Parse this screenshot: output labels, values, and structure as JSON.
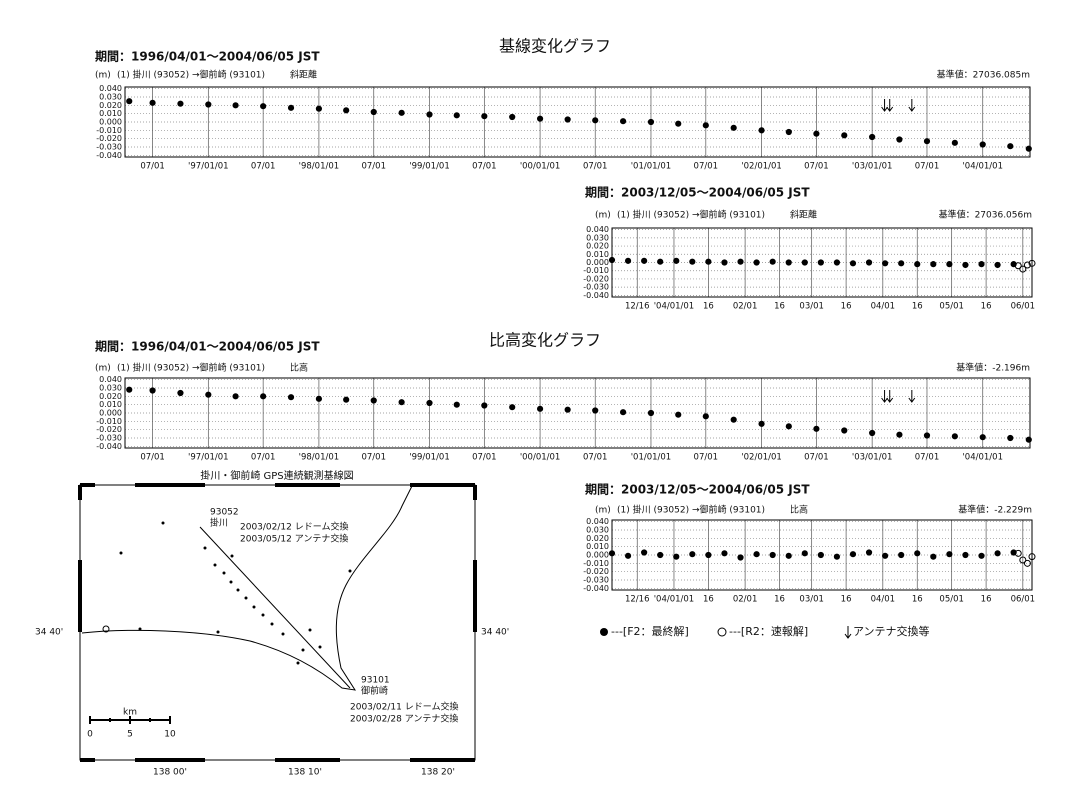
{
  "chart_data": [
    {
      "type": "scatter",
      "title": "基線変化グラフ",
      "subtitle": "期間：1996/04/01～2004/06/05 JST",
      "y_label": "(m)",
      "baseline": "(1) 掛川 (93052) →御前崎 (93101)",
      "component": "斜距離",
      "reference": "基準値：27036.085m",
      "xlim": [
        "1996-04-01",
        "2004-06-05"
      ],
      "ylim": [
        -0.042,
        0.042
      ],
      "xticks": [
        {
          "value": "1996-07-01",
          "label": "07/01"
        },
        {
          "value": "1997-01-01",
          "label": "'97/01/01"
        },
        {
          "value": "1997-07-01",
          "label": "07/01"
        },
        {
          "value": "1998-01-01",
          "label": "'98/01/01"
        },
        {
          "value": "1998-07-01",
          "label": "07/01"
        },
        {
          "value": "1999-01-01",
          "label": "'99/01/01"
        },
        {
          "value": "1999-07-01",
          "label": "07/01"
        },
        {
          "value": "2000-01-01",
          "label": "'00/01/01"
        },
        {
          "value": "2000-07-01",
          "label": "07/01"
        },
        {
          "value": "2001-01-01",
          "label": "'01/01/01"
        },
        {
          "value": "2001-07-01",
          "label": "07/01"
        },
        {
          "value": "2002-01-01",
          "label": "'02/01/01"
        },
        {
          "value": "2002-07-01",
          "label": "07/01"
        },
        {
          "value": "2003-01-01",
          "label": "'03/01/01"
        },
        {
          "value": "2003-07-01",
          "label": "07/01"
        },
        {
          "value": "2004-01-01",
          "label": "'04/01/01"
        }
      ],
      "yticks": [
        {
          "value": 0.04,
          "label": "0.040"
        },
        {
          "value": 0.03,
          "label": "0.030"
        },
        {
          "value": 0.02,
          "label": "0.020"
        },
        {
          "value": 0.01,
          "label": "0.010"
        },
        {
          "value": 0,
          "label": "0.000"
        },
        {
          "value": -0.01,
          "label": "-0.010"
        },
        {
          "value": -0.02,
          "label": "-0.020"
        },
        {
          "value": -0.03,
          "label": "-0.030"
        },
        {
          "value": -0.04,
          "label": "-0.040"
        }
      ],
      "events": [
        "2003-02-11",
        "2003-02-28",
        "2003-05-12"
      ],
      "series": [
        {
          "color": "#000000",
          "marker": "filled",
          "x": [
            "1996-04-15",
            "1996-07-01",
            "1996-10-01",
            "1997-01-01",
            "1997-04-01",
            "1997-07-01",
            "1997-10-01",
            "1998-01-01",
            "1998-04-01",
            "1998-07-01",
            "1998-10-01",
            "1999-01-01",
            "1999-04-01",
            "1999-07-01",
            "1999-10-01",
            "2000-01-01",
            "2000-04-01",
            "2000-07-01",
            "2000-10-01",
            "2001-01-01",
            "2001-04-01",
            "2001-07-01",
            "2001-10-01",
            "2002-01-01",
            "2002-04-01",
            "2002-07-01",
            "2002-10-01",
            "2003-01-01",
            "2003-04-01",
            "2003-07-01",
            "2003-10-01",
            "2004-01-01",
            "2004-04-01",
            "2004-06-01"
          ],
          "values": [
            0.025,
            0.023,
            0.022,
            0.021,
            0.02,
            0.019,
            0.017,
            0.016,
            0.014,
            0.012,
            0.011,
            0.009,
            0.008,
            0.007,
            0.006,
            0.004,
            0.003,
            0.002,
            0.001,
            0.0,
            -0.002,
            -0.004,
            -0.007,
            -0.01,
            -0.012,
            -0.014,
            -0.016,
            -0.018,
            -0.021,
            -0.023,
            -0.025,
            -0.027,
            -0.029,
            -0.032
          ]
        }
      ]
    },
    {
      "type": "scatter",
      "subtitle": "期間：2003/12/05～2004/06/05 JST",
      "y_label": "(m)",
      "baseline": "(1) 掛川 (93052) →御前崎 (93101)",
      "component": "斜距離",
      "reference": "基準値：27036.056m",
      "xlim": [
        "2003-12-05",
        "2004-06-05"
      ],
      "ylim": [
        -0.042,
        0.042
      ],
      "xticks": [
        {
          "value": "2003-12-16",
          "label": "12/16"
        },
        {
          "value": "2004-01-01",
          "label": "'04/01/01"
        },
        {
          "value": "2004-01-16",
          "label": "16"
        },
        {
          "value": "2004-02-01",
          "label": "02/01"
        },
        {
          "value": "2004-02-16",
          "label": "16"
        },
        {
          "value": "2004-03-01",
          "label": "03/01"
        },
        {
          "value": "2004-03-16",
          "label": "16"
        },
        {
          "value": "2004-04-01",
          "label": "04/01"
        },
        {
          "value": "2004-04-16",
          "label": "16"
        },
        {
          "value": "2004-05-01",
          "label": "05/01"
        },
        {
          "value": "2004-05-16",
          "label": "16"
        },
        {
          "value": "2004-06-01",
          "label": "06/01"
        }
      ],
      "yticks": [
        {
          "value": 0.04,
          "label": "0.040"
        },
        {
          "value": 0.03,
          "label": "0.030"
        },
        {
          "value": 0.02,
          "label": "0.020"
        },
        {
          "value": 0.01,
          "label": "0.010"
        },
        {
          "value": 0,
          "label": "0.000"
        },
        {
          "value": -0.01,
          "label": "-0.010"
        },
        {
          "value": -0.02,
          "label": "-0.020"
        },
        {
          "value": -0.03,
          "label": "-0.030"
        },
        {
          "value": -0.04,
          "label": "-0.040"
        }
      ],
      "series": [
        {
          "color": "#000000",
          "marker": "filled",
          "x": [
            "2003-12-05",
            "2003-12-12",
            "2003-12-19",
            "2003-12-26",
            "2004-01-02",
            "2004-01-09",
            "2004-01-16",
            "2004-01-23",
            "2004-01-30",
            "2004-02-06",
            "2004-02-13",
            "2004-02-20",
            "2004-02-27",
            "2004-03-05",
            "2004-03-12",
            "2004-03-19",
            "2004-03-26",
            "2004-04-02",
            "2004-04-09",
            "2004-04-16",
            "2004-04-23",
            "2004-04-30",
            "2004-05-07",
            "2004-05-14",
            "2004-05-21",
            "2004-05-28"
          ],
          "values": [
            0.003,
            0.002,
            0.002,
            0.001,
            0.002,
            0.001,
            0.001,
            0.0,
            0.001,
            0.0,
            0.001,
            0.0,
            0.0,
            0.0,
            0.0,
            -0.001,
            0.0,
            -0.001,
            -0.001,
            -0.002,
            -0.002,
            -0.002,
            -0.003,
            -0.002,
            -0.003,
            -0.002
          ]
        },
        {
          "color": "#000000",
          "marker": "open",
          "x": [
            "2004-05-30",
            "2004-06-01",
            "2004-06-03",
            "2004-06-05"
          ],
          "values": [
            -0.004,
            -0.008,
            -0.003,
            -0.001
          ]
        }
      ]
    },
    {
      "type": "scatter",
      "title": "比高変化グラフ",
      "subtitle": "期間：1996/04/01～2004/06/05 JST",
      "y_label": "(m)",
      "baseline": "(1) 掛川 (93052) →御前崎 (93101)",
      "component": "比高",
      "reference": "基準値：-2.196m",
      "xlim": [
        "1996-04-01",
        "2004-06-05"
      ],
      "ylim": [
        -0.042,
        0.042
      ],
      "xticks": [
        {
          "value": "1996-07-01",
          "label": "07/01"
        },
        {
          "value": "1997-01-01",
          "label": "'97/01/01"
        },
        {
          "value": "1997-07-01",
          "label": "07/01"
        },
        {
          "value": "1998-01-01",
          "label": "'98/01/01"
        },
        {
          "value": "1998-07-01",
          "label": "07/01"
        },
        {
          "value": "1999-01-01",
          "label": "'99/01/01"
        },
        {
          "value": "1999-07-01",
          "label": "07/01"
        },
        {
          "value": "2000-01-01",
          "label": "'00/01/01"
        },
        {
          "value": "2000-07-01",
          "label": "07/01"
        },
        {
          "value": "2001-01-01",
          "label": "'01/01/01"
        },
        {
          "value": "2001-07-01",
          "label": "07/01"
        },
        {
          "value": "2002-01-01",
          "label": "'02/01/01"
        },
        {
          "value": "2002-07-01",
          "label": "07/01"
        },
        {
          "value": "2003-01-01",
          "label": "'03/01/01"
        },
        {
          "value": "2003-07-01",
          "label": "07/01"
        },
        {
          "value": "2004-01-01",
          "label": "'04/01/01"
        }
      ],
      "yticks": [
        {
          "value": 0.04,
          "label": "0.040"
        },
        {
          "value": 0.03,
          "label": "0.030"
        },
        {
          "value": 0.02,
          "label": "0.020"
        },
        {
          "value": 0.01,
          "label": "0.010"
        },
        {
          "value": 0,
          "label": "0.000"
        },
        {
          "value": -0.01,
          "label": "-0.010"
        },
        {
          "value": -0.02,
          "label": "-0.020"
        },
        {
          "value": -0.03,
          "label": "-0.030"
        },
        {
          "value": -0.04,
          "label": "-0.040"
        }
      ],
      "events": [
        "2003-02-11",
        "2003-02-28",
        "2003-05-12"
      ],
      "series": [
        {
          "color": "#000000",
          "marker": "filled",
          "x": [
            "1996-04-15",
            "1996-07-01",
            "1996-10-01",
            "1997-01-01",
            "1997-04-01",
            "1997-07-01",
            "1997-10-01",
            "1998-01-01",
            "1998-04-01",
            "1998-07-01",
            "1998-10-01",
            "1999-01-01",
            "1999-04-01",
            "1999-07-01",
            "1999-10-01",
            "2000-01-01",
            "2000-04-01",
            "2000-07-01",
            "2000-10-01",
            "2001-01-01",
            "2001-04-01",
            "2001-07-01",
            "2001-10-01",
            "2002-01-01",
            "2002-04-01",
            "2002-07-01",
            "2002-10-01",
            "2003-01-01",
            "2003-04-01",
            "2003-07-01",
            "2003-10-01",
            "2004-01-01",
            "2004-04-01",
            "2004-06-01"
          ],
          "values": [
            0.028,
            0.027,
            0.024,
            0.022,
            0.02,
            0.02,
            0.019,
            0.017,
            0.016,
            0.015,
            0.013,
            0.012,
            0.01,
            0.009,
            0.007,
            0.005,
            0.004,
            0.003,
            0.001,
            0.0,
            -0.002,
            -0.004,
            -0.008,
            -0.013,
            -0.016,
            -0.019,
            -0.021,
            -0.024,
            -0.026,
            -0.027,
            -0.028,
            -0.029,
            -0.03,
            -0.032
          ]
        }
      ]
    },
    {
      "type": "scatter",
      "subtitle": "期間：2003/12/05～2004/06/05 JST",
      "y_label": "(m)",
      "baseline": "(1) 掛川 (93052) →御前崎 (93101)",
      "component": "比高",
      "reference": "基準値：-2.229m",
      "xlim": [
        "2003-12-05",
        "2004-06-05"
      ],
      "ylim": [
        -0.042,
        0.042
      ],
      "xticks": [
        {
          "value": "2003-12-16",
          "label": "12/16"
        },
        {
          "value": "2004-01-01",
          "label": "'04/01/01"
        },
        {
          "value": "2004-01-16",
          "label": "16"
        },
        {
          "value": "2004-02-01",
          "label": "02/01"
        },
        {
          "value": "2004-02-16",
          "label": "16"
        },
        {
          "value": "2004-03-01",
          "label": "03/01"
        },
        {
          "value": "2004-03-16",
          "label": "16"
        },
        {
          "value": "2004-04-01",
          "label": "04/01"
        },
        {
          "value": "2004-04-16",
          "label": "16"
        },
        {
          "value": "2004-05-01",
          "label": "05/01"
        },
        {
          "value": "2004-05-16",
          "label": "16"
        },
        {
          "value": "2004-06-01",
          "label": "06/01"
        }
      ],
      "yticks": [
        {
          "value": 0.04,
          "label": "0.040"
        },
        {
          "value": 0.03,
          "label": "0.030"
        },
        {
          "value": 0.02,
          "label": "0.020"
        },
        {
          "value": 0.01,
          "label": "0.010"
        },
        {
          "value": 0,
          "label": "0.000"
        },
        {
          "value": -0.01,
          "label": "-0.010"
        },
        {
          "value": -0.02,
          "label": "-0.020"
        },
        {
          "value": -0.03,
          "label": "-0.030"
        },
        {
          "value": -0.04,
          "label": "-0.040"
        }
      ],
      "series": [
        {
          "color": "#000000",
          "marker": "filled",
          "x": [
            "2003-12-05",
            "2003-12-12",
            "2003-12-19",
            "2003-12-26",
            "2004-01-02",
            "2004-01-09",
            "2004-01-16",
            "2004-01-23",
            "2004-01-30",
            "2004-02-06",
            "2004-02-13",
            "2004-02-20",
            "2004-02-27",
            "2004-03-05",
            "2004-03-12",
            "2004-03-19",
            "2004-03-26",
            "2004-04-02",
            "2004-04-09",
            "2004-04-16",
            "2004-04-23",
            "2004-04-30",
            "2004-05-07",
            "2004-05-14",
            "2004-05-21",
            "2004-05-28"
          ],
          "values": [
            0.002,
            -0.001,
            0.003,
            0.0,
            -0.002,
            0.001,
            0.0,
            0.002,
            -0.003,
            0.001,
            0.0,
            -0.001,
            0.002,
            0.0,
            -0.002,
            0.001,
            0.003,
            -0.001,
            0.0,
            0.002,
            -0.002,
            0.001,
            0.0,
            -0.001,
            0.002,
            0.003
          ]
        },
        {
          "color": "#000000",
          "marker": "open",
          "x": [
            "2004-05-30",
            "2004-06-01",
            "2004-06-03",
            "2004-06-05"
          ],
          "values": [
            0.002,
            -0.006,
            -0.01,
            -0.002
          ]
        }
      ]
    }
  ],
  "legend": {
    "final": "---[F2：最終解]",
    "rapid": "---[R2：速報解]",
    "event": "アンテナ交換等"
  },
  "map": {
    "title": "掛川・御前崎 GPS連続観測基線図",
    "station1_id": "93052",
    "station1_name": "掛川",
    "station1_note1": "2003/02/12 レドーム交換",
    "station1_note2": "2003/05/12 アンテナ交換",
    "station2_id": "93101",
    "station2_name": "御前崎",
    "station2_note1": "2003/02/11 レドーム交換",
    "station2_note2": "2003/02/28 アンテナ交換",
    "scale_unit": "km",
    "scale_0": "0",
    "scale_5": "5",
    "scale_10": "10",
    "lat_left": "34 40'",
    "lat_right": "34 40'",
    "lon_1": "138 00'",
    "lon_2": "138 10'",
    "lon_3": "138 20'"
  }
}
